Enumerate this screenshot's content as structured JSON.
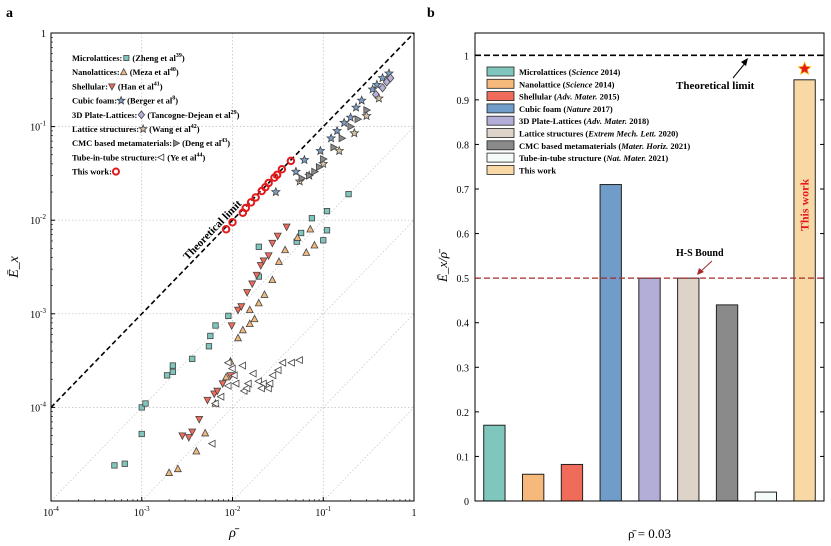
{
  "figure": {
    "panel_a_label": "a",
    "panel_b_label": "b"
  },
  "chart_data": [
    {
      "type": "scatter",
      "panel": "a",
      "xscale": "log",
      "yscale": "log",
      "xlim": [
        0.0001,
        1
      ],
      "ylim": [
        1e-05,
        1
      ],
      "xlabel": "ρ̄",
      "ylabel": "Ē_x",
      "x_tick_labels": [
        "10^-4",
        "10^-3",
        "10^-2",
        "10^-1",
        "1"
      ],
      "y_tick_labels": [
        "10^-4",
        "10^-3",
        "10^-2",
        "10^-1",
        "1"
      ],
      "x_ticks": [
        0.0001,
        0.001,
        0.01,
        0.1,
        1
      ],
      "y_ticks": [
        0.0001,
        0.001,
        0.01,
        0.1,
        1
      ],
      "grid": true,
      "legend_position": "top-left",
      "theoretical_limit": {
        "label": "Theoretical limit",
        "relation": "Ē_x = ρ̄"
      },
      "series": [
        {
          "name": "Microlattices",
          "ref": "(Zheng et al",
          "sup": "39",
          "marker": "square",
          "color": "#7fc7bd",
          "points": [
            [
              0.0005,
              2.4e-05
            ],
            [
              0.00065,
              2.5e-05
            ],
            [
              0.001,
              5.2e-05
            ],
            [
              0.001,
              0.0001
            ],
            [
              0.0011,
              0.00011
            ],
            [
              0.0019,
              0.00022
            ],
            [
              0.0022,
              0.00024
            ],
            [
              0.0022,
              0.00028
            ],
            [
              0.0036,
              0.00033
            ],
            [
              0.0055,
              0.00045
            ],
            [
              0.0057,
              0.00058
            ],
            [
              0.0065,
              0.00075
            ],
            [
              0.009,
              0.00095
            ],
            [
              0.0195,
              0.0025
            ],
            [
              0.0195,
              0.0052
            ],
            [
              0.051,
              0.0059
            ],
            [
              0.057,
              0.0073
            ],
            [
              0.1,
              0.0061
            ],
            [
              0.11,
              0.0078
            ],
            [
              0.075,
              0.0105
            ],
            [
              0.11,
              0.0125
            ],
            [
              0.19,
              0.019
            ]
          ]
        },
        {
          "name": "Nanolattices",
          "ref": "(Meza et al",
          "sup": "40",
          "marker": "triangle-up",
          "color": "#f2b97d",
          "points": [
            [
              0.002,
              2e-05
            ],
            [
              0.0025,
              2.2e-05
            ],
            [
              0.004,
              3.4e-05
            ],
            [
              0.005,
              5.3e-05
            ],
            [
              0.0065,
              0.00011
            ],
            [
              0.0085,
              0.00021
            ],
            [
              0.0095,
              0.00031
            ],
            [
              0.0115,
              0.00055
            ],
            [
              0.013,
              0.00067
            ],
            [
              0.0155,
              0.00078
            ],
            [
              0.0175,
              0.00088
            ],
            [
              0.0155,
              0.0011
            ],
            [
              0.0195,
              0.0013
            ],
            [
              0.0225,
              0.0016
            ],
            [
              0.0275,
              0.0023
            ],
            [
              0.0325,
              0.0036
            ],
            [
              0.038,
              0.0048
            ],
            [
              0.052,
              0.0065
            ],
            [
              0.072,
              0.008
            ],
            [
              0.065,
              0.0045
            ],
            [
              0.08,
              0.0054
            ]
          ]
        },
        {
          "name": "Shellular",
          "ref": "(Han et al",
          "sup": "41",
          "marker": "triangle-down",
          "color": "#f06b5a",
          "points": [
            [
              0.0028,
              5e-05
            ],
            [
              0.0033,
              4.8e-05
            ],
            [
              0.0036,
              5.5e-05
            ],
            [
              0.0043,
              7.5e-05
            ],
            [
              0.0053,
              0.00012
            ],
            [
              0.0063,
              0.00014
            ],
            [
              0.0068,
              0.00015
            ],
            [
              0.0078,
              0.00018
            ],
            [
              0.0095,
              0.00022
            ],
            [
              0.0098,
              0.00075
            ],
            [
              0.0115,
              0.0011
            ],
            [
              0.0125,
              0.0012
            ],
            [
              0.0145,
              0.0017
            ],
            [
              0.0165,
              0.0021
            ],
            [
              0.0185,
              0.0026
            ],
            [
              0.0205,
              0.0033
            ],
            [
              0.022,
              0.0037
            ],
            [
              0.025,
              0.0042
            ],
            [
              0.0275,
              0.0057
            ],
            [
              0.0315,
              0.0068
            ],
            [
              0.0395,
              0.0085
            ]
          ]
        },
        {
          "name": "Cubic foam",
          "ref": "(Berger et al",
          "sup": "8",
          "marker": "star",
          "color": "#7a9fc9",
          "points": [
            [
              0.03,
              0.02
            ],
            [
              0.05,
              0.033
            ],
            [
              0.062,
              0.044
            ],
            [
              0.093,
              0.055
            ],
            [
              0.122,
              0.075
            ],
            [
              0.142,
              0.09
            ],
            [
              0.17,
              0.11
            ],
            [
              0.2,
              0.125
            ],
            [
              0.23,
              0.16
            ],
            [
              0.265,
              0.19
            ],
            [
              0.35,
              0.25
            ],
            [
              0.39,
              0.28
            ],
            [
              0.45,
              0.33
            ],
            [
              0.53,
              0.37
            ]
          ]
        },
        {
          "name": "3D Plate-Lattices",
          "ref": "(Tancogne-Dejean et al",
          "sup": "29",
          "marker": "diamond",
          "color": "#b6b0d8",
          "points": [
            [
              0.38,
              0.22
            ],
            [
              0.45,
              0.26
            ],
            [
              0.5,
              0.3
            ],
            [
              0.55,
              0.33
            ]
          ]
        },
        {
          "name": "Lattice structures",
          "ref": "(Wang et al",
          "sup": "42",
          "marker": "star",
          "color": "#d9c5a6",
          "points": [
            [
              0.055,
              0.026
            ],
            [
              0.07,
              0.03
            ],
            [
              0.1,
              0.04
            ],
            [
              0.15,
              0.055
            ],
            [
              0.22,
              0.085
            ],
            [
              0.3,
              0.13
            ],
            [
              0.41,
              0.2
            ]
          ]
        },
        {
          "name": "CMC based metamaterials",
          "ref": "(Deng et al",
          "sup": "43",
          "marker": "triangle-right",
          "color": "#8a8a8a",
          "points": [
            [
              0.058,
              0.028
            ],
            [
              0.07,
              0.03
            ],
            [
              0.08,
              0.033
            ],
            [
              0.09,
              0.037
            ],
            [
              0.1,
              0.045
            ],
            [
              0.13,
              0.06
            ],
            [
              0.16,
              0.075
            ],
            [
              0.2,
              0.1
            ],
            [
              0.24,
              0.12
            ],
            [
              0.3,
              0.15
            ]
          ]
        },
        {
          "name": "Tube-in-tube structure",
          "ref": "(Ye et al",
          "sup": "44",
          "marker": "triangle-left",
          "color": "#ffffff",
          "points": [
            [
              0.006,
              4.1e-05
            ],
            [
              0.0065,
              0.00011
            ],
            [
              0.0075,
              0.00013
            ],
            [
              0.009,
              0.00017
            ],
            [
              0.011,
              0.00018
            ],
            [
              0.0105,
              0.00022
            ],
            [
              0.0135,
              0.00015
            ],
            [
              0.0145,
              0.00016
            ],
            [
              0.015,
              0.00018
            ],
            [
              0.017,
              0.00023
            ],
            [
              0.0195,
              0.00019
            ],
            [
              0.021,
              0.00016
            ],
            [
              0.022,
              0.00018
            ],
            [
              0.025,
              0.00016
            ],
            [
              0.026,
              0.00018
            ],
            [
              0.028,
              0.00022
            ],
            [
              0.032,
              0.00025
            ],
            [
              0.036,
              0.0003
            ],
            [
              0.045,
              0.0003
            ],
            [
              0.055,
              0.00032
            ],
            [
              0.013,
              0.00028
            ],
            [
              0.009,
              0.0003
            ],
            [
              0.01,
              0.00026
            ]
          ]
        },
        {
          "name": "This work",
          "ref": "",
          "sup": "",
          "marker": "circle",
          "color": "#e31a1c",
          "points": [
            [
              0.0085,
              0.008
            ],
            [
              0.01,
              0.0095
            ],
            [
              0.013,
              0.012
            ],
            [
              0.014,
              0.0135
            ],
            [
              0.016,
              0.0155
            ],
            [
              0.018,
              0.0175
            ],
            [
              0.021,
              0.0205
            ],
            [
              0.023,
              0.0225
            ],
            [
              0.025,
              0.025
            ],
            [
              0.029,
              0.0285
            ],
            [
              0.031,
              0.0305
            ],
            [
              0.035,
              0.035
            ],
            [
              0.044,
              0.043
            ]
          ]
        }
      ]
    },
    {
      "type": "bar",
      "panel": "b",
      "ylim": [
        0,
        1.05
      ],
      "y_ticks": [
        0,
        0.1,
        0.2,
        0.3,
        0.4,
        0.5,
        0.6,
        0.7,
        0.8,
        0.9,
        1
      ],
      "y_tick_labels": [
        "0",
        "0.1",
        "0.2",
        "0.3",
        "0.4",
        "0.5",
        "0.6",
        "0.7",
        "0.8",
        "0.9",
        "1"
      ],
      "ylabel": "Ē_x/ρ̄",
      "xlabel": "ρ̄ = 0.03",
      "legend_position": "top-left",
      "theoretical_limit": {
        "label": "Theoretical limit",
        "value": 1
      },
      "hs_bound": {
        "label": "H-S Bound",
        "value": 0.5
      },
      "this_work_label": "This work",
      "bars": [
        {
          "name": "Microlattices",
          "journal": "Science",
          "year": "2014",
          "value": 0.17,
          "color": "#7fc7bd"
        },
        {
          "name": "Nanolattice",
          "journal": "Science",
          "year": "2014",
          "value": 0.06,
          "color": "#f5b97b"
        },
        {
          "name": "Shellular",
          "journal": "Adv. Mater.",
          "year": "2015",
          "value": 0.082,
          "color": "#f06b5a"
        },
        {
          "name": "Cubic foam",
          "journal": "Nature",
          "year": "2017",
          "value": 0.71,
          "color": "#6f9cc8"
        },
        {
          "name": "3D Plate-Lattices",
          "journal": "Adv. Mater.",
          "year": "2018",
          "value": 0.5,
          "color": "#b3aed8"
        },
        {
          "name": "Lattice structures",
          "journal": "Extrem Mech. Lett.",
          "year": "2020",
          "value": 0.5,
          "color": "#ddd3c8"
        },
        {
          "name": "CMC based metamaterials",
          "journal": "Mater. Horiz.",
          "year": "2021",
          "value": 0.44,
          "color": "#8a8a8a"
        },
        {
          "name": "Tube-in-tube structure",
          "journal": "Nat. Mater.",
          "year": "2021",
          "value": 0.02,
          "color": "#f4fbf8"
        },
        {
          "name": "This work",
          "journal": "",
          "year": "",
          "value": 0.945,
          "color": "#f8d9a6"
        }
      ]
    }
  ]
}
